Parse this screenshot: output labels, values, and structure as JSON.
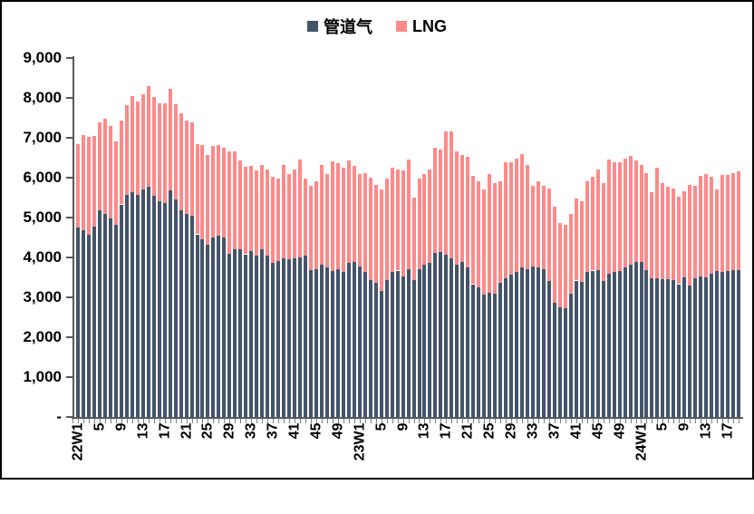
{
  "legend": {
    "items": [
      {
        "label": "管道气",
        "color": "#44546A"
      },
      {
        "label": "LNG",
        "color": "#FF8A8A"
      }
    ]
  },
  "y_axis": {
    "tick_labels": [
      "9,000",
      "8,000",
      "7,000",
      "6,000",
      "5,000",
      "4,000",
      "3,000",
      "2,000",
      "1,000",
      "-"
    ],
    "min": 0,
    "max": 9000,
    "step": 1000
  },
  "x_axis": {
    "tick_labels": [
      "22W1",
      "5",
      "9",
      "13",
      "17",
      "21",
      "25",
      "29",
      "33",
      "37",
      "41",
      "45",
      "49",
      "23W1",
      "5",
      "9",
      "13",
      "17",
      "21",
      "25",
      "29",
      "33",
      "37",
      "41",
      "45",
      "49",
      "24W1",
      "5",
      "9",
      "13",
      "17"
    ],
    "label_interval": 4
  },
  "chart_data": {
    "type": "bar",
    "stacked": true,
    "title": "",
    "xlabel": "",
    "ylabel": "",
    "ylim": [
      0,
      9000
    ],
    "grid": false,
    "legend_position": "top",
    "categories": [
      "22W1",
      "22W2",
      "22W3",
      "22W4",
      "22W5",
      "22W6",
      "22W7",
      "22W8",
      "22W9",
      "22W10",
      "22W11",
      "22W12",
      "22W13",
      "22W14",
      "22W15",
      "22W16",
      "22W17",
      "22W18",
      "22W19",
      "22W20",
      "22W21",
      "22W22",
      "22W23",
      "22W24",
      "22W25",
      "22W26",
      "22W27",
      "22W28",
      "22W29",
      "22W30",
      "22W31",
      "22W32",
      "22W33",
      "22W34",
      "22W35",
      "22W36",
      "22W37",
      "22W38",
      "22W39",
      "22W40",
      "22W41",
      "22W42",
      "22W43",
      "22W44",
      "22W45",
      "22W46",
      "22W47",
      "22W48",
      "22W49",
      "22W50",
      "22W51",
      "22W52",
      "23W1",
      "23W2",
      "23W3",
      "23W4",
      "23W5",
      "23W6",
      "23W7",
      "23W8",
      "23W9",
      "23W10",
      "23W11",
      "23W12",
      "23W13",
      "23W14",
      "23W15",
      "23W16",
      "23W17",
      "23W18",
      "23W19",
      "23W20",
      "23W21",
      "23W22",
      "23W23",
      "23W24",
      "23W25",
      "23W26",
      "23W27",
      "23W28",
      "23W29",
      "23W30",
      "23W31",
      "23W32",
      "23W33",
      "23W34",
      "23W35",
      "23W36",
      "23W37",
      "23W38",
      "23W39",
      "23W40",
      "23W41",
      "23W42",
      "23W43",
      "23W44",
      "23W45",
      "23W46",
      "23W47",
      "23W48",
      "23W49",
      "23W50",
      "23W51",
      "23W52",
      "24W1",
      "24W2",
      "24W3",
      "24W4",
      "24W5",
      "24W6",
      "24W7",
      "24W8",
      "24W9",
      "24W10",
      "24W11",
      "24W12",
      "24W13",
      "24W14",
      "24W15",
      "24W16",
      "24W17",
      "24W18",
      "24W19"
    ],
    "series": [
      {
        "name": "管道气",
        "color": "#44546A",
        "values": [
          4740,
          4690,
          4560,
          4770,
          5180,
          5090,
          4970,
          4830,
          5330,
          5580,
          5640,
          5580,
          5700,
          5770,
          5550,
          5410,
          5360,
          5680,
          5450,
          5180,
          5090,
          5040,
          4580,
          4460,
          4330,
          4490,
          4540,
          4500,
          4100,
          4200,
          4200,
          4080,
          4160,
          4050,
          4200,
          4050,
          3860,
          3900,
          3970,
          3960,
          3970,
          4010,
          4050,
          3680,
          3710,
          3830,
          3740,
          3650,
          3710,
          3630,
          3860,
          3890,
          3780,
          3630,
          3440,
          3360,
          3170,
          3440,
          3630,
          3670,
          3520,
          3700,
          3440,
          3710,
          3820,
          3860,
          4120,
          4140,
          4080,
          3970,
          3830,
          3890,
          3740,
          3330,
          3250,
          3060,
          3120,
          3100,
          3360,
          3480,
          3570,
          3640,
          3740,
          3710,
          3780,
          3760,
          3710,
          3400,
          2870,
          2760,
          2720,
          3100,
          3420,
          3380,
          3630,
          3670,
          3680,
          3400,
          3590,
          3630,
          3650,
          3740,
          3820,
          3890,
          3890,
          3680,
          3480,
          3480,
          3460,
          3460,
          3440,
          3330,
          3490,
          3290,
          3480,
          3520,
          3500,
          3590,
          3650,
          3630,
          3670,
          3680,
          3690
        ]
      },
      {
        "name": "LNG",
        "color": "#FF8A8A",
        "values": [
          2110,
          2385,
          2465,
          2270,
          2200,
          2380,
          2320,
          2080,
          2100,
          2250,
          2410,
          2330,
          2400,
          2520,
          2470,
          2460,
          2510,
          2550,
          2400,
          2430,
          2350,
          2340,
          2270,
          2370,
          2250,
          2300,
          2290,
          2260,
          2550,
          2460,
          2230,
          2200,
          2140,
          2130,
          2120,
          2160,
          2160,
          2080,
          2360,
          2130,
          2240,
          2440,
          1930,
          2120,
          2210,
          2500,
          2350,
          2750,
          2650,
          2620,
          2580,
          2400,
          2310,
          2480,
          2550,
          2470,
          2540,
          2540,
          2620,
          2530,
          2660,
          2750,
          2050,
          2270,
          2270,
          2340,
          2620,
          2560,
          3090,
          3180,
          2830,
          2670,
          2790,
          2720,
          2670,
          2650,
          2970,
          2760,
          2540,
          2900,
          2810,
          2830,
          2850,
          2620,
          2020,
          2140,
          2090,
          2330,
          2400,
          2100,
          2110,
          1990,
          2050,
          2040,
          2290,
          2360,
          2520,
          2460,
          2870,
          2750,
          2740,
          2730,
          2730,
          2550,
          2440,
          2430,
          2160,
          2780,
          2400,
          2310,
          2290,
          2190,
          2160,
          2540,
          2310,
          2530,
          2590,
          2430,
          2050,
          2450,
          2410,
          2430,
          2460
        ]
      }
    ]
  }
}
